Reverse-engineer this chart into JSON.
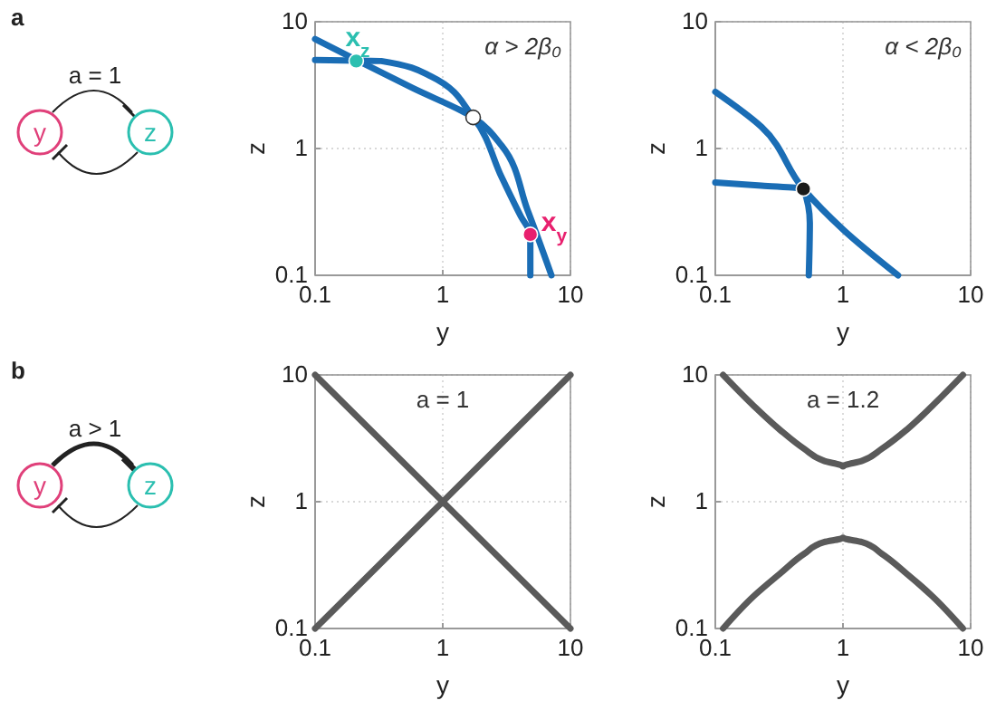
{
  "chart_data": [
    {
      "type": "line",
      "title": "α > 2β₀",
      "xlabel": "y",
      "ylabel": "z",
      "log": "xy",
      "xlim": [
        0.1,
        10
      ],
      "ylim": [
        0.1,
        10
      ],
      "xticks": [
        0.1,
        1,
        10
      ],
      "yticks": [
        0.1,
        1,
        10
      ],
      "grid": true,
      "annotations": [
        "a",
        "a = 1",
        "y",
        "z",
        {
          "text": "x$_{z}$",
          "x": 0.21,
          "y": 4.9
        },
        {
          "text": "x$_{y}$",
          "x": 4.85,
          "y": 0.21
        }
      ],
      "series": [
        {
          "color": "#1a6db5",
          "x": [
            0.1,
            0.21,
            0.58,
            1.73,
            2.9,
            4.6,
            7.1
          ],
          "values": [
            7.3,
            5.0,
            3.0,
            1.76,
            1.05,
            0.33,
            0.1
          ]
        },
        {
          "color": "#1a6db5",
          "x": [
            0.1,
            0.33,
            0.81,
            1.73,
            2.9,
            4.1,
            4.85,
            4.85
          ],
          "values": [
            5.0,
            4.9,
            3.7,
            1.76,
            0.59,
            0.29,
            0.21,
            0.1
          ]
        },
        {
          "type": "scatter",
          "marker": "circle",
          "colors": [
            "#2bbfb0",
            "#ffffff",
            "#e8206e"
          ],
          "x": [
            0.21,
            1.73,
            4.85
          ],
          "values": [
            4.9,
            1.76,
            0.21
          ]
        }
      ]
    },
    {
      "type": "line",
      "title": "α < 2β₀",
      "xlabel": "y",
      "ylabel": "z",
      "log": "xy",
      "xlim": [
        0.1,
        10
      ],
      "ylim": [
        0.1,
        10
      ],
      "xticks": [
        0.1,
        1,
        10
      ],
      "yticks": [
        0.1,
        1,
        10
      ],
      "grid": true,
      "series": [
        {
          "color": "#1a6db5",
          "x": [
            0.1,
            0.23,
            0.49,
            1.0,
            2.7
          ],
          "values": [
            2.8,
            1.48,
            0.48,
            0.23,
            0.1
          ]
        },
        {
          "color": "#1a6db5",
          "x": [
            0.1,
            0.23,
            0.49,
            0.55,
            0.54
          ],
          "values": [
            0.54,
            0.51,
            0.48,
            0.26,
            0.1
          ]
        },
        {
          "type": "scatter",
          "marker": "circle",
          "colors": [
            "#1a1a1a"
          ],
          "x": [
            0.49
          ],
          "values": [
            0.48
          ]
        }
      ]
    },
    {
      "type": "line",
      "title": "a = 1",
      "xlabel": "y",
      "ylabel": "z",
      "log": "xy",
      "xlim": [
        0.1,
        10
      ],
      "ylim": [
        0.1,
        10
      ],
      "xticks": [
        0.1,
        1,
        10
      ],
      "yticks": [
        0.1,
        1,
        10
      ],
      "grid": true,
      "annotations": [
        "b",
        "a > 1",
        "y",
        "z"
      ],
      "series": [
        {
          "color": "#5a5a5a",
          "x": [
            0.1,
            10
          ],
          "values": [
            0.1,
            10
          ]
        },
        {
          "color": "#5a5a5a",
          "x": [
            0.1,
            10
          ],
          "values": [
            10,
            0.1
          ]
        }
      ]
    },
    {
      "type": "line",
      "title": "a = 1.2",
      "xlabel": "y",
      "ylabel": "z",
      "log": "xy",
      "xlim": [
        0.1,
        10
      ],
      "ylim": [
        0.1,
        10
      ],
      "xticks": [
        0.1,
        1,
        10
      ],
      "yticks": [
        0.1,
        1,
        10
      ],
      "grid": true,
      "series": [
        {
          "color": "#5a5a5a",
          "x": [
            0.115,
            0.2,
            0.32,
            0.5,
            0.71,
            1,
            1.41,
            2,
            3.16,
            5,
            8.7
          ],
          "values": [
            10,
            5.7,
            3.7,
            2.6,
            2.1,
            1.9,
            2.1,
            2.6,
            3.7,
            5.7,
            10
          ]
        },
        {
          "color": "#5a5a5a",
          "x": [
            0.115,
            0.2,
            0.32,
            0.5,
            0.71,
            1,
            1.41,
            2,
            3.16,
            5,
            8.7
          ],
          "values": [
            0.1,
            0.18,
            0.27,
            0.39,
            0.48,
            0.52,
            0.48,
            0.39,
            0.27,
            0.18,
            0.1
          ]
        }
      ]
    }
  ]
}
